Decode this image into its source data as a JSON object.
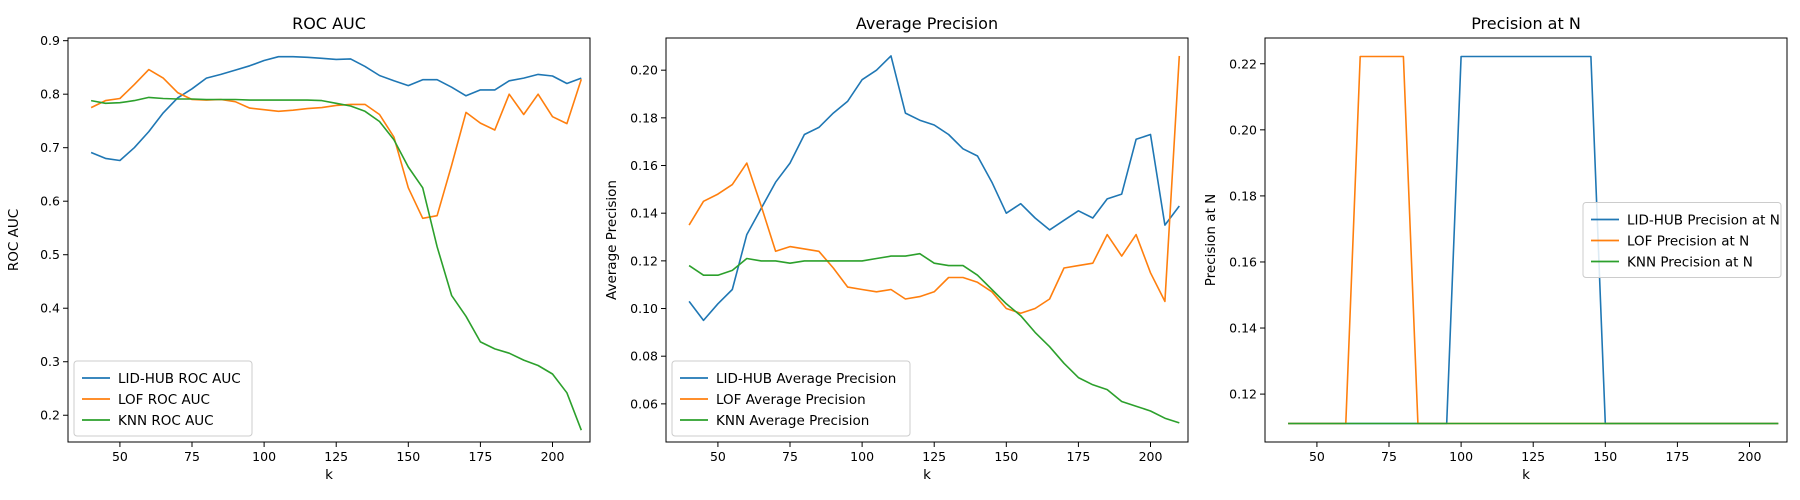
{
  "colors": {
    "lid": "#1f77b4",
    "lof": "#ff7f0e",
    "knn": "#2ca02c"
  },
  "chart_data": [
    {
      "type": "line",
      "title": "ROC AUC",
      "xlabel": "k",
      "ylabel": "ROC AUC",
      "xlim": [
        32,
        213
      ],
      "ylim": [
        0.15,
        0.905
      ],
      "xticks": [
        50,
        75,
        100,
        125,
        150,
        175,
        200
      ],
      "yticks": [
        0.2,
        0.3,
        0.4,
        0.5,
        0.6,
        0.7,
        0.8,
        0.9
      ],
      "ytick_labels": [
        "0.2",
        "0.3",
        "0.4",
        "0.5",
        "0.6",
        "0.7",
        "0.8",
        "0.9"
      ],
      "legend": "lower-left",
      "x": [
        40,
        45,
        50,
        55,
        60,
        65,
        70,
        75,
        80,
        85,
        90,
        95,
        100,
        105,
        110,
        115,
        120,
        125,
        130,
        135,
        140,
        145,
        150,
        155,
        160,
        165,
        170,
        175,
        180,
        185,
        190,
        195,
        200,
        205,
        210
      ],
      "series": [
        {
          "name": "LID-HUB ROC AUC",
          "color_key": "lid",
          "values": [
            0.691,
            0.68,
            0.676,
            0.7,
            0.73,
            0.765,
            0.793,
            0.81,
            0.83,
            0.837,
            0.845,
            0.853,
            0.863,
            0.87,
            0.87,
            0.869,
            0.867,
            0.865,
            0.866,
            0.852,
            0.835,
            0.825,
            0.816,
            0.827,
            0.827,
            0.813,
            0.797,
            0.808,
            0.808,
            0.825,
            0.83,
            0.837,
            0.834,
            0.82,
            0.83
          ]
        },
        {
          "name": "LOF ROC AUC",
          "color_key": "lof",
          "values": [
            0.775,
            0.788,
            0.792,
            0.818,
            0.846,
            0.83,
            0.803,
            0.79,
            0.789,
            0.79,
            0.786,
            0.774,
            0.771,
            0.768,
            0.77,
            0.773,
            0.775,
            0.779,
            0.781,
            0.781,
            0.762,
            0.72,
            0.625,
            0.568,
            0.573,
            0.667,
            0.766,
            0.746,
            0.733,
            0.8,
            0.762,
            0.8,
            0.758,
            0.745,
            0.828
          ]
        },
        {
          "name": "KNN ROC AUC",
          "color_key": "knn",
          "values": [
            0.788,
            0.783,
            0.784,
            0.788,
            0.794,
            0.792,
            0.791,
            0.791,
            0.79,
            0.79,
            0.79,
            0.789,
            0.789,
            0.789,
            0.789,
            0.789,
            0.788,
            0.783,
            0.778,
            0.768,
            0.749,
            0.715,
            0.664,
            0.625,
            0.515,
            0.424,
            0.385,
            0.337,
            0.324,
            0.316,
            0.303,
            0.293,
            0.277,
            0.242,
            0.172
          ]
        }
      ]
    },
    {
      "type": "line",
      "title": "Average Precision",
      "xlabel": "k",
      "ylabel": "Average Precision",
      "xlim": [
        32,
        213
      ],
      "ylim": [
        0.044,
        0.2135
      ],
      "xticks": [
        50,
        75,
        100,
        125,
        150,
        175,
        200
      ],
      "yticks": [
        0.06,
        0.08,
        0.1,
        0.12,
        0.14,
        0.16,
        0.18,
        0.2
      ],
      "ytick_labels": [
        "0.06",
        "0.08",
        "0.10",
        "0.12",
        "0.14",
        "0.16",
        "0.18",
        "0.20"
      ],
      "legend": "lower-left",
      "x": [
        40,
        45,
        50,
        55,
        60,
        65,
        70,
        75,
        80,
        85,
        90,
        95,
        100,
        105,
        110,
        115,
        120,
        125,
        130,
        135,
        140,
        145,
        150,
        155,
        160,
        165,
        170,
        175,
        180,
        185,
        190,
        195,
        200,
        205,
        210
      ],
      "series": [
        {
          "name": "LID-HUB Average Precision",
          "color_key": "lid",
          "values": [
            0.103,
            0.095,
            0.102,
            0.108,
            0.131,
            0.142,
            0.153,
            0.161,
            0.173,
            0.176,
            0.182,
            0.187,
            0.196,
            0.2,
            0.206,
            0.182,
            0.179,
            0.177,
            0.173,
            0.167,
            0.164,
            0.153,
            0.14,
            0.144,
            0.138,
            0.133,
            0.137,
            0.141,
            0.138,
            0.146,
            0.148,
            0.171,
            0.173,
            0.135,
            0.143
          ]
        },
        {
          "name": "LOF Average Precision",
          "color_key": "lof",
          "values": [
            0.135,
            0.145,
            0.148,
            0.152,
            0.161,
            0.143,
            0.124,
            0.126,
            0.125,
            0.124,
            0.117,
            0.109,
            0.108,
            0.107,
            0.108,
            0.104,
            0.105,
            0.107,
            0.113,
            0.113,
            0.111,
            0.107,
            0.1,
            0.098,
            0.1,
            0.104,
            0.117,
            0.118,
            0.119,
            0.131,
            0.122,
            0.131,
            0.115,
            0.103,
            0.206
          ]
        },
        {
          "name": "KNN Average Precision",
          "color_key": "knn",
          "values": [
            0.118,
            0.114,
            0.114,
            0.116,
            0.121,
            0.12,
            0.12,
            0.119,
            0.12,
            0.12,
            0.12,
            0.12,
            0.12,
            0.121,
            0.122,
            0.122,
            0.123,
            0.119,
            0.118,
            0.118,
            0.114,
            0.108,
            0.102,
            0.097,
            0.09,
            0.084,
            0.077,
            0.071,
            0.068,
            0.066,
            0.061,
            0.059,
            0.057,
            0.054,
            0.052
          ]
        }
      ]
    },
    {
      "type": "line",
      "title": "Precision at N",
      "xlabel": "k",
      "ylabel": "Precision at N",
      "xlim": [
        32,
        213
      ],
      "ylim": [
        0.1055,
        0.2278
      ],
      "xticks": [
        50,
        75,
        100,
        125,
        150,
        175,
        200
      ],
      "yticks": [
        0.12,
        0.14,
        0.16,
        0.18,
        0.2,
        0.22
      ],
      "ytick_labels": [
        "0.12",
        "0.14",
        "0.16",
        "0.18",
        "0.20",
        "0.22"
      ],
      "legend": "center-right",
      "x": [
        40,
        45,
        50,
        55,
        60,
        65,
        70,
        75,
        80,
        85,
        90,
        95,
        100,
        105,
        110,
        115,
        120,
        125,
        130,
        135,
        140,
        145,
        150,
        155,
        160,
        165,
        170,
        175,
        180,
        185,
        190,
        195,
        200,
        205,
        210
      ],
      "series": [
        {
          "name": "LID-HUB Precision at N",
          "color_key": "lid",
          "values": [
            0.1111,
            0.1111,
            0.1111,
            0.1111,
            0.1111,
            0.1111,
            0.1111,
            0.1111,
            0.1111,
            0.1111,
            0.1111,
            0.1111,
            0.2222,
            0.2222,
            0.2222,
            0.2222,
            0.2222,
            0.2222,
            0.2222,
            0.2222,
            0.2222,
            0.2222,
            0.1111,
            0.1111,
            0.1111,
            0.1111,
            0.1111,
            0.1111,
            0.1111,
            0.1111,
            0.1111,
            0.1111,
            0.1111,
            0.1111,
            0.1111
          ]
        },
        {
          "name": "LOF Precision at N",
          "color_key": "lof",
          "values": [
            0.1111,
            0.1111,
            0.1111,
            0.1111,
            0.1111,
            0.2222,
            0.2222,
            0.2222,
            0.2222,
            0.1111,
            0.1111,
            0.1111,
            0.1111,
            0.1111,
            0.1111,
            0.1111,
            0.1111,
            0.1111,
            0.1111,
            0.1111,
            0.1111,
            0.1111,
            0.1111,
            0.1111,
            0.1111,
            0.1111,
            0.1111,
            0.1111,
            0.1111,
            0.1111,
            0.1111,
            0.1111,
            0.1111,
            0.1111,
            0.1111
          ]
        },
        {
          "name": "KNN Precision at N",
          "color_key": "knn",
          "values": [
            0.1111,
            0.1111,
            0.1111,
            0.1111,
            0.1111,
            0.1111,
            0.1111,
            0.1111,
            0.1111,
            0.1111,
            0.1111,
            0.1111,
            0.1111,
            0.1111,
            0.1111,
            0.1111,
            0.1111,
            0.1111,
            0.1111,
            0.1111,
            0.1111,
            0.1111,
            0.1111,
            0.1111,
            0.1111,
            0.1111,
            0.1111,
            0.1111,
            0.1111,
            0.1111,
            0.1111,
            0.1111,
            0.1111,
            0.1111,
            0.1111
          ]
        }
      ]
    }
  ]
}
